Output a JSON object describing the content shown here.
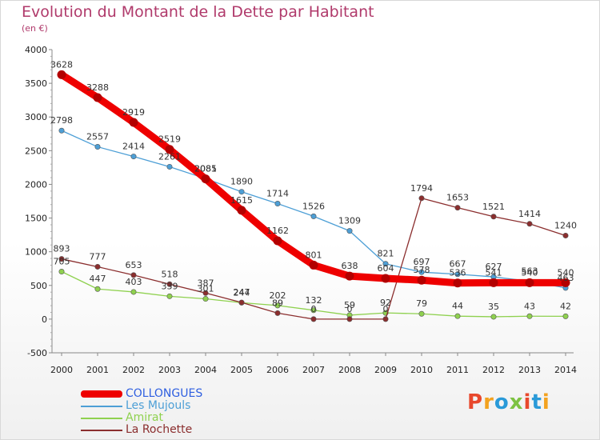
{
  "header": {
    "title": "Evolution du Montant de la Dette par Habitant",
    "unit": "(en €)"
  },
  "logo": {
    "text": "Proxiti",
    "colors": [
      "#e8482d",
      "#f3a21f",
      "#2a9ad8",
      "#7dc242",
      "#e8482d",
      "#2a9ad8",
      "#f3a21f"
    ]
  },
  "chart_data": {
    "type": "line",
    "title": "Evolution du Montant de la Dette par Habitant",
    "subtitle": "(en €)",
    "xlabel": "",
    "ylabel": "",
    "x": [
      2000,
      2001,
      2002,
      2003,
      2004,
      2005,
      2006,
      2007,
      2008,
      2009,
      2010,
      2011,
      2012,
      2013,
      2014
    ],
    "ylim": [
      -500,
      4000
    ],
    "yticks": [
      -500,
      0,
      500,
      1000,
      1500,
      2000,
      2500,
      3000,
      3500,
      4000
    ],
    "grid": false,
    "legend_position": "bottom-left",
    "series": [
      {
        "name": "COLLONGUES",
        "color": "#ee0000",
        "legend_color": "#2f5fe0",
        "emphasis": "thick",
        "values": [
          3628,
          3288,
          2919,
          2519,
          2081,
          1615,
          1162,
          801,
          638,
          604,
          578,
          536,
          541,
          540,
          540
        ],
        "labels": [
          "3628",
          "3288",
          "2919",
          "2519",
          "2081",
          "1615",
          "1162",
          "801",
          "638",
          "604",
          "578",
          "536",
          "541",
          "540",
          "540"
        ]
      },
      {
        "name": "Les Mujouls",
        "color": "#4d9fd6",
        "values": [
          2798,
          2557,
          2414,
          2261,
          2085,
          1890,
          1714,
          1526,
          1309,
          821,
          697,
          667,
          627,
          563,
          463
        ],
        "labels": [
          "2798",
          "2557",
          "2414",
          "2261",
          "2085",
          "1890",
          "1714",
          "1526",
          "1309",
          "821",
          "697",
          "667",
          "627",
          "563",
          "463"
        ]
      },
      {
        "name": "Amirat",
        "color": "#8fd14f",
        "values": [
          705,
          447,
          403,
          339,
          301,
          244,
          202,
          132,
          59,
          92,
          79,
          44,
          35,
          43,
          42
        ],
        "labels": [
          "705",
          "447",
          "403",
          "339",
          "301",
          "244",
          "202",
          "132",
          "59",
          "92",
          "79",
          "44",
          "35",
          "43",
          "42"
        ]
      },
      {
        "name": "La Rochette",
        "color": "#8b2e2e",
        "values": [
          893,
          777,
          653,
          518,
          387,
          247,
          89,
          0,
          0,
          0,
          1794,
          1653,
          1521,
          1414,
          1240
        ],
        "labels": [
          "893",
          "777",
          "653",
          "518",
          "387",
          "247",
          "89",
          "0",
          "0",
          "0",
          "1794",
          "1653",
          "1521",
          "1414",
          "1240"
        ]
      }
    ]
  }
}
